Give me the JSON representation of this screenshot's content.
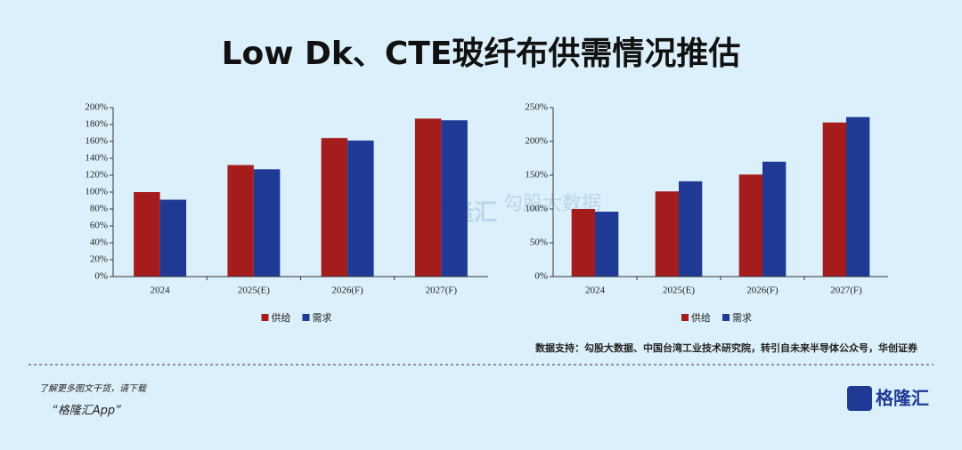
{
  "title": "Low Dk、CTE玻纤布供需情况推估",
  "source": "数据支持：勾股大数据、中国台湾工业技术研究院，转引自未来半导体公众号，华创证券",
  "footer": {
    "line1": "了解更多图文干货，请下载",
    "line2": "“格隆汇App”",
    "logo": "格隆汇"
  },
  "watermark": [
    "格隆汇",
    "勾股大数据"
  ],
  "chart_data": [
    {
      "type": "bar",
      "categories": [
        "2024",
        "2025(E)",
        "2026(F)",
        "2027(F)"
      ],
      "series": [
        {
          "name": "供给",
          "color": "#a51c1c",
          "values": [
            100,
            132,
            164,
            187
          ]
        },
        {
          "name": "需求",
          "color": "#1e3a94",
          "values": [
            91,
            127,
            161,
            185
          ]
        }
      ],
      "ylim": [
        0,
        200
      ],
      "yticks": [
        {
          "value": 0,
          "label": "0%"
        },
        {
          "value": 20,
          "label": "20%"
        },
        {
          "value": 40,
          "label": "40%"
        },
        {
          "value": 60,
          "label": "60%"
        },
        {
          "value": 80,
          "label": "80%"
        },
        {
          "value": 100,
          "label": "100%"
        },
        {
          "value": 120,
          "label": "120%"
        },
        {
          "value": 140,
          "label": "140%"
        },
        {
          "value": 160,
          "label": "160%"
        },
        {
          "value": 180,
          "label": "180%"
        },
        {
          "value": 200,
          "label": "200%"
        }
      ]
    },
    {
      "type": "bar",
      "categories": [
        "2024",
        "2025(E)",
        "2026(F)",
        "2027(F)"
      ],
      "series": [
        {
          "name": "供给",
          "color": "#a51c1c",
          "values": [
            100,
            126,
            151,
            228
          ]
        },
        {
          "name": "需求",
          "color": "#1e3a94",
          "values": [
            96,
            141,
            170,
            236
          ]
        }
      ],
      "ylim": [
        0,
        250
      ],
      "yticks": [
        {
          "value": 0,
          "label": "0%"
        },
        {
          "value": 50,
          "label": "50%"
        },
        {
          "value": 100,
          "label": "100%"
        },
        {
          "value": 150,
          "label": "150%"
        },
        {
          "value": 200,
          "label": "200%"
        },
        {
          "value": 250,
          "label": "250%"
        }
      ]
    }
  ]
}
